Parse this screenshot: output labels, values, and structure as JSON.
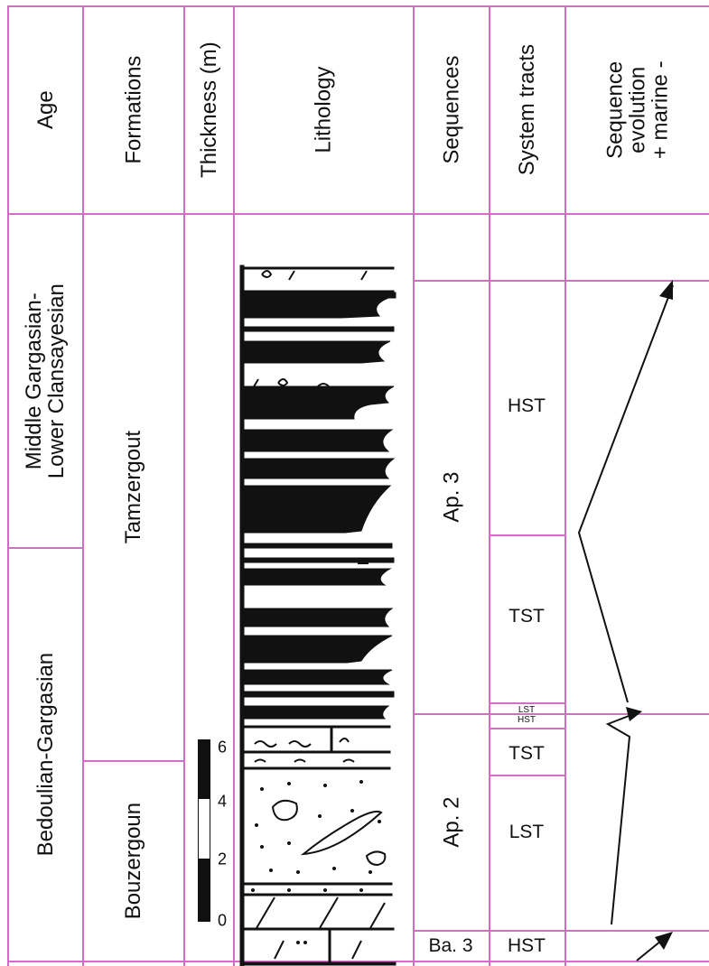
{
  "headers": {
    "age": "Age",
    "formations": "Formations",
    "thickness": "Thickness (m)",
    "lithology": "Lithology",
    "sequences": "Sequences",
    "system_tracts": "System tracts",
    "sequence_evolution": {
      "line1": "Sequence",
      "line2": "evolution",
      "line3": "+ marine -"
    }
  },
  "ages": [
    {
      "line1": "Middle Gargasian-",
      "line2": "Lower Clansayesian"
    },
    {
      "line1": "Bedoulian-Gargasian",
      "line2": ""
    }
  ],
  "formations": [
    "Tamzergout",
    "Bouzergoun"
  ],
  "scale": {
    "ticks": [
      "6",
      "4",
      "2",
      "0"
    ],
    "max_m": 6
  },
  "sequences": [
    "Ap. 3",
    "Ap. 2",
    "Ba. 3"
  ],
  "system_tracts": {
    "ap3": [
      "HST",
      "TST"
    ],
    "lst_hst_boundary": [
      "LST",
      "HST"
    ],
    "ap2": [
      "TST",
      "LST"
    ],
    "ba3": [
      "HST"
    ]
  },
  "colors": {
    "grid_pink": "#d46dc4",
    "ink": "#111111",
    "background": "#ffffff"
  },
  "icons": [
    "sequence-trend-arrow-icon",
    "lithology-column-icon",
    "thickness-scale-bar-icon"
  ]
}
